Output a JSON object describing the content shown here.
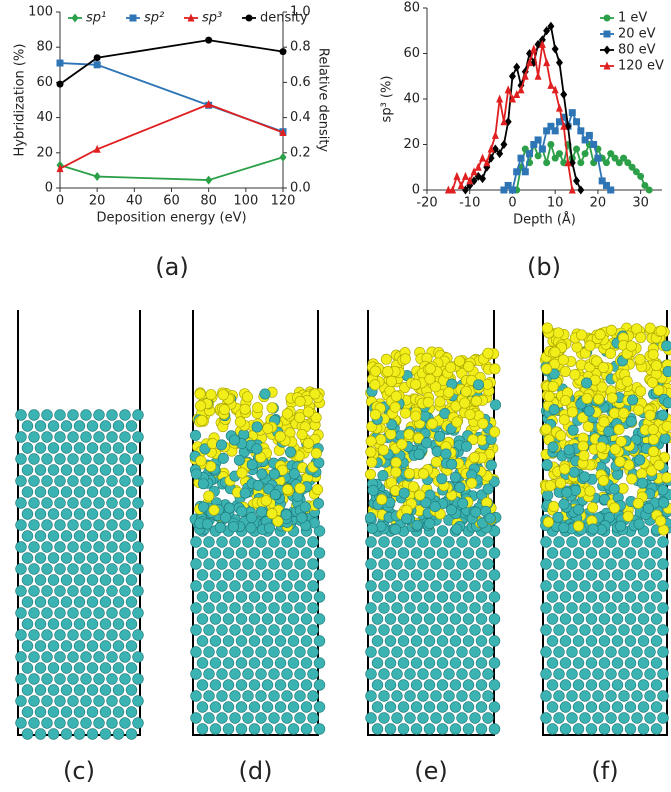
{
  "chart_data": [
    {
      "type": "line",
      "caption": "(a)",
      "x_label": "Deposition energy (eV)",
      "y_label": "Hybridization (%)",
      "y2_label": "Relative density",
      "x": [
        0,
        20,
        80,
        120
      ],
      "xlim": [
        0,
        120
      ],
      "xticks": [
        0,
        20,
        40,
        60,
        80,
        100,
        120
      ],
      "ylim": [
        0,
        100
      ],
      "yticks": [
        0,
        20,
        40,
        60,
        80,
        100
      ],
      "y2lim": [
        0,
        1
      ],
      "y2ticks": [
        {
          "value": 0,
          "label": "0.0"
        },
        0.2,
        0.4,
        0.6,
        0.8,
        {
          "value": 1,
          "label": "1.0"
        }
      ],
      "legend": "top",
      "series": [
        {
          "name": "sp¹",
          "color": "#2ca048",
          "marker": "diamond",
          "values": [
            13,
            6.5,
            4.5,
            17.5
          ]
        },
        {
          "name": "sp²",
          "color": "#2e75b6",
          "marker": "square",
          "values": [
            71,
            70,
            47,
            32
          ]
        },
        {
          "name": "sp³",
          "color": "#e02020",
          "marker": "triangle",
          "values": [
            11,
            22,
            47.5,
            31.5
          ]
        },
        {
          "name": "density",
          "color": "#000000",
          "marker": "circle",
          "axis": "y2",
          "values": [
            0.59,
            0.74,
            0.84,
            0.775
          ]
        }
      ]
    },
    {
      "type": "line",
      "caption": "(b)",
      "x_label": "Depth (Å)",
      "y_label": "sp³ (%)",
      "xlim": [
        -20,
        35
      ],
      "xticks": [
        -20,
        -10,
        0,
        10,
        20,
        30
      ],
      "ylim": [
        0,
        80
      ],
      "yticks": [
        0,
        20,
        40,
        60,
        80
      ],
      "legend": "top-right",
      "series": [
        {
          "name": "1 eV",
          "color": "#2ca048",
          "marker": "circle",
          "x": [
            1,
            2,
            3,
            4,
            5,
            6,
            7,
            8,
            9,
            10,
            11,
            12,
            13,
            14,
            15,
            16,
            17,
            18,
            19,
            20,
            21,
            22,
            23,
            24,
            25,
            26,
            27,
            28,
            29,
            30,
            31,
            32
          ],
          "values": [
            0,
            10,
            18,
            12,
            20,
            15,
            18,
            12,
            20,
            14,
            16,
            12,
            20,
            14,
            18,
            12,
            16,
            20,
            12,
            18,
            14,
            12,
            16,
            14,
            12,
            14,
            12,
            10,
            8,
            6,
            2,
            0
          ]
        },
        {
          "name": "20 eV",
          "color": "#2e75b6",
          "marker": "square",
          "x": [
            -2,
            -1,
            0,
            1,
            2,
            3,
            4,
            5,
            6,
            7,
            8,
            9,
            10,
            11,
            12,
            13,
            14,
            15,
            16,
            17,
            18,
            19,
            20,
            21,
            22,
            23
          ],
          "values": [
            0,
            2,
            0,
            8,
            14,
            8,
            16,
            20,
            22,
            18,
            26,
            28,
            26,
            30,
            32,
            28,
            34,
            30,
            26,
            22,
            24,
            20,
            14,
            4,
            2,
            0
          ]
        },
        {
          "name": "80 eV",
          "color": "#000000",
          "marker": "diamond",
          "x": [
            -11,
            -10,
            -9,
            -8,
            -7,
            -6,
            -5,
            -4,
            -3,
            -2,
            -1,
            0,
            1,
            2,
            3,
            4,
            5,
            6,
            7,
            8,
            9,
            10,
            11,
            12,
            13,
            14,
            15,
            16
          ],
          "values": [
            0,
            2,
            4,
            6,
            5,
            10,
            14,
            18,
            16,
            20,
            30,
            50,
            54,
            46,
            52,
            60,
            56,
            64,
            66,
            70,
            72,
            62,
            56,
            42,
            28,
            12,
            4,
            0
          ]
        },
        {
          "name": "120 eV",
          "color": "#e02020",
          "marker": "triangle",
          "x": [
            -15,
            -14,
            -13,
            -12,
            -11,
            -10,
            -9,
            -8,
            -7,
            -6,
            -5,
            -4,
            -3,
            -2,
            -1,
            0,
            1,
            2,
            3,
            4,
            5,
            6,
            7,
            8,
            9,
            10,
            11,
            12,
            13,
            14
          ],
          "values": [
            0,
            0,
            6,
            2,
            6,
            4,
            8,
            10,
            14,
            12,
            18,
            24,
            40,
            30,
            44,
            40,
            42,
            44,
            50,
            56,
            62,
            50,
            64,
            56,
            46,
            44,
            36,
            28,
            12,
            0
          ]
        }
      ]
    }
  ],
  "panels": [
    {
      "caption": "(c)"
    },
    {
      "caption": "(d)"
    },
    {
      "caption": "(e)"
    },
    {
      "caption": "(f)"
    }
  ]
}
